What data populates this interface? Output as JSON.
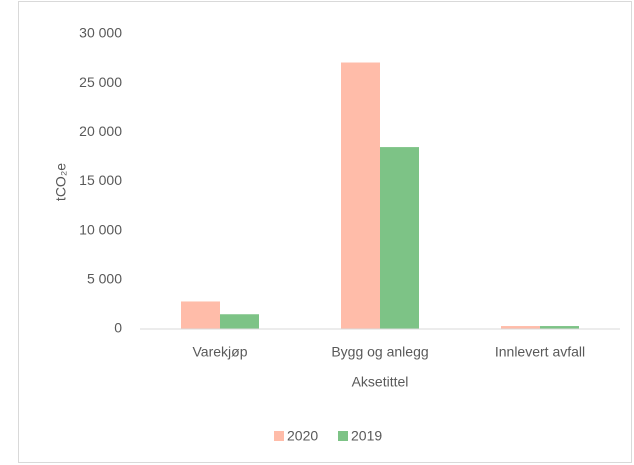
{
  "chart_data": {
    "type": "bar",
    "categories": [
      "Varekjøp",
      "Bygg og anlegg",
      "Innlevert avfall"
    ],
    "series": [
      {
        "name": "2020",
        "color": "#ffbca9",
        "values": [
          2800,
          27100,
          300
        ]
      },
      {
        "name": "2019",
        "color": "#7dc386",
        "values": [
          1500,
          18500,
          300
        ]
      }
    ],
    "x_label": "Aksetittel",
    "y_label": "tCO₂e",
    "ylim": [
      0,
      30000
    ],
    "yticks": [
      0,
      {
        "value": 5000,
        "label": "5 000"
      },
      {
        "value": 10000,
        "label": "10 000"
      },
      {
        "value": 15000,
        "label": "15 000"
      },
      {
        "value": 20000,
        "label": "20 000"
      },
      {
        "value": 25000,
        "label": "25 000"
      },
      {
        "value": 30000,
        "label": "30 000"
      }
    ],
    "grid": false,
    "legend": "bottom"
  }
}
